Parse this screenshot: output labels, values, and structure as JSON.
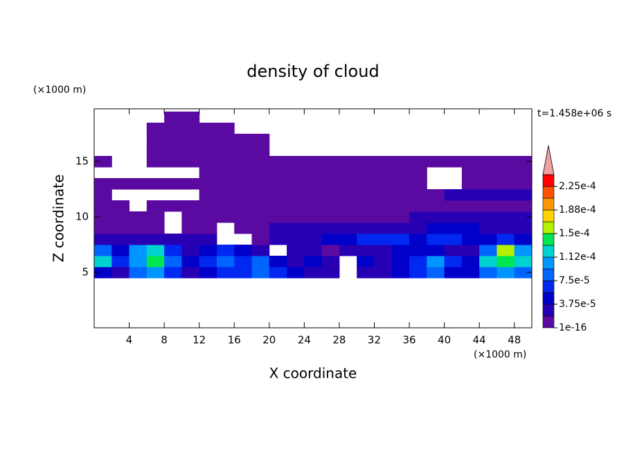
{
  "chart_data": {
    "type": "contour",
    "title": "density of cloud",
    "x_label": "X coordinate",
    "y_label": "Z coordinate",
    "x_unit": "(×1000 m)",
    "y_unit": "(×1000 m)",
    "annotation": "t=1.458e+06 s",
    "xlim": [
      0,
      50
    ],
    "ylim": [
      0,
      19.75
    ],
    "xticks": [
      4,
      8,
      12,
      16,
      20,
      24,
      28,
      32,
      36,
      40,
      44,
      48
    ],
    "yticks": [
      5,
      10,
      15
    ],
    "x": [
      1,
      3,
      5,
      7,
      9,
      11,
      13,
      15,
      17,
      19,
      21,
      23,
      25,
      27,
      29,
      31,
      33,
      35,
      37,
      39,
      41,
      43,
      45,
      47,
      49
    ],
    "y": [
      5,
      6,
      7,
      8,
      9,
      10,
      11,
      12,
      13,
      14,
      15,
      16,
      17,
      18,
      19
    ],
    "z": [
      [
        4e-05,
        2.5e-05,
        8e-05,
        0.0001,
        6e-05,
        2.5e-05,
        4e-05,
        6e-05,
        6e-05,
        8e-05,
        6e-05,
        4e-05,
        2.5e-05,
        2.5e-05,
        null,
        2.5e-05,
        2.5e-05,
        4e-05,
        6e-05,
        8e-05,
        4e-05,
        4e-05,
        8e-05,
        0.0001,
        8e-05
      ],
      [
        0.00012,
        6e-05,
        0.0001,
        0.00014,
        8e-05,
        4e-05,
        6e-05,
        8e-05,
        6e-05,
        8e-05,
        4e-05,
        2.5e-05,
        4e-05,
        2.5e-05,
        null,
        4e-05,
        2.5e-05,
        4e-05,
        6e-05,
        0.0001,
        6e-05,
        4e-05,
        0.00012,
        0.00014,
        0.00012
      ],
      [
        8e-05,
        4e-05,
        0.0001,
        0.00012,
        6e-05,
        2.5e-05,
        4e-05,
        6e-05,
        4e-05,
        2.5e-05,
        null,
        2.5e-05,
        2.5e-05,
        1e-05,
        2.5e-05,
        2.5e-05,
        2.5e-05,
        4e-05,
        4e-05,
        4e-05,
        2.5e-05,
        2.5e-05,
        8e-05,
        0.00016,
        0.0001
      ],
      [
        2.5e-05,
        2.5e-05,
        2.5e-05,
        2.5e-05,
        2.5e-05,
        2.5e-05,
        2.5e-05,
        null,
        null,
        1e-05,
        2.5e-05,
        2.5e-05,
        2.5e-05,
        4e-05,
        4e-05,
        6e-05,
        6e-05,
        6e-05,
        4e-05,
        6e-05,
        6e-05,
        4e-05,
        4e-05,
        6e-05,
        4e-05
      ],
      [
        1e-05,
        1e-05,
        1e-05,
        1e-05,
        null,
        1e-05,
        1e-05,
        null,
        1e-05,
        1e-05,
        2.5e-05,
        2.5e-05,
        2.5e-05,
        2.5e-05,
        2.5e-05,
        2.5e-05,
        2.5e-05,
        2.5e-05,
        2.5e-05,
        4e-05,
        4e-05,
        4e-05,
        2.5e-05,
        2.5e-05,
        2.5e-05
      ],
      [
        1e-05,
        1e-05,
        1e-05,
        1e-05,
        null,
        1e-05,
        1e-05,
        1e-05,
        1e-05,
        1e-05,
        1e-05,
        1e-05,
        1e-05,
        1e-05,
        1e-05,
        1e-05,
        1e-05,
        1e-05,
        2.5e-05,
        2.5e-05,
        2.5e-05,
        2.5e-05,
        2.5e-05,
        2.5e-05,
        2.5e-05
      ],
      [
        1e-05,
        1e-05,
        null,
        1e-05,
        1e-05,
        1e-05,
        1e-05,
        1e-05,
        1e-05,
        1e-05,
        1e-05,
        1e-05,
        1e-05,
        1e-05,
        1e-05,
        1e-05,
        1e-05,
        1e-05,
        1e-05,
        1e-05,
        1e-05,
        1e-05,
        1e-05,
        1e-05,
        1e-05
      ],
      [
        1e-05,
        null,
        null,
        null,
        null,
        null,
        1e-05,
        1e-05,
        1e-05,
        1e-05,
        1e-05,
        1e-05,
        1e-05,
        1e-05,
        1e-05,
        1e-05,
        1e-05,
        1e-05,
        1e-05,
        1e-05,
        2.5e-05,
        2.5e-05,
        2.5e-05,
        2.5e-05,
        2.5e-05
      ],
      [
        1e-05,
        1e-05,
        1e-05,
        1e-05,
        1e-05,
        1e-05,
        1e-05,
        1e-05,
        1e-05,
        1e-05,
        1e-05,
        1e-05,
        1e-05,
        1e-05,
        1e-05,
        1e-05,
        1e-05,
        1e-05,
        1e-05,
        null,
        null,
        1e-05,
        1e-05,
        1e-05,
        1e-05
      ],
      [
        null,
        null,
        null,
        null,
        null,
        null,
        1e-05,
        1e-05,
        1e-05,
        1e-05,
        1e-05,
        1e-05,
        1e-05,
        1e-05,
        1e-05,
        1e-05,
        1e-05,
        1e-05,
        1e-05,
        null,
        null,
        1e-05,
        1e-05,
        1e-05,
        1e-05
      ],
      [
        1e-05,
        null,
        null,
        1e-05,
        1e-05,
        1e-05,
        1e-05,
        1e-05,
        1e-05,
        1e-05,
        1e-05,
        1e-05,
        1e-05,
        1e-05,
        1e-05,
        1e-05,
        1e-05,
        1e-05,
        1e-05,
        1e-05,
        1e-05,
        1e-05,
        1e-05,
        1e-05,
        1e-05
      ],
      [
        null,
        null,
        null,
        1e-05,
        1e-05,
        1e-05,
        1e-05,
        1e-05,
        1e-05,
        1e-05,
        null,
        null,
        null,
        null,
        null,
        null,
        null,
        null,
        null,
        null,
        null,
        null,
        null,
        null,
        null
      ],
      [
        null,
        null,
        null,
        1e-05,
        1e-05,
        1e-05,
        1e-05,
        1e-05,
        1e-05,
        1e-05,
        null,
        null,
        null,
        null,
        null,
        null,
        null,
        null,
        null,
        null,
        null,
        null,
        null,
        null,
        null
      ],
      [
        null,
        null,
        null,
        1e-05,
        1e-05,
        1e-05,
        1e-05,
        1e-05,
        null,
        null,
        null,
        null,
        null,
        null,
        null,
        null,
        null,
        null,
        null,
        null,
        null,
        null,
        null,
        null,
        null
      ],
      [
        null,
        null,
        null,
        null,
        1e-05,
        1e-05,
        null,
        null,
        null,
        null,
        null,
        null,
        null,
        null,
        null,
        null,
        null,
        null,
        null,
        null,
        null,
        null,
        null,
        null,
        null
      ]
    ],
    "colorbar": {
      "levels": [
        1e-16,
        1.875e-05,
        3.75e-05,
        5.625e-05,
        7.5e-05,
        9.375e-05,
        0.0001125,
        0.00013125,
        0.00015,
        0.00016875,
        0.0001875,
        0.00020625,
        0.000225,
        0.00024375
      ],
      "colors": [
        "#5a0aa0",
        "#2800b4",
        "#0000c8",
        "#0028f0",
        "#0064ff",
        "#0096ff",
        "#00d2d2",
        "#00e650",
        "#b4f000",
        "#ffd200",
        "#ff9600",
        "#ff5000",
        "#ff0000"
      ],
      "extend_color": "#f0a0a0",
      "ticks": [
        {
          "value": 1e-16,
          "label": "1e-16"
        },
        {
          "value": 3.75e-05,
          "label": "3.75e-5"
        },
        {
          "value": 7.5e-05,
          "label": "7.5e-5"
        },
        {
          "value": 0.0001125,
          "label": "1.12e-4"
        },
        {
          "value": 0.00015,
          "label": "1.5e-4"
        },
        {
          "value": 0.0001875,
          "label": "1.88e-4"
        },
        {
          "value": 0.000225,
          "label": "2.25e-4"
        }
      ]
    }
  }
}
